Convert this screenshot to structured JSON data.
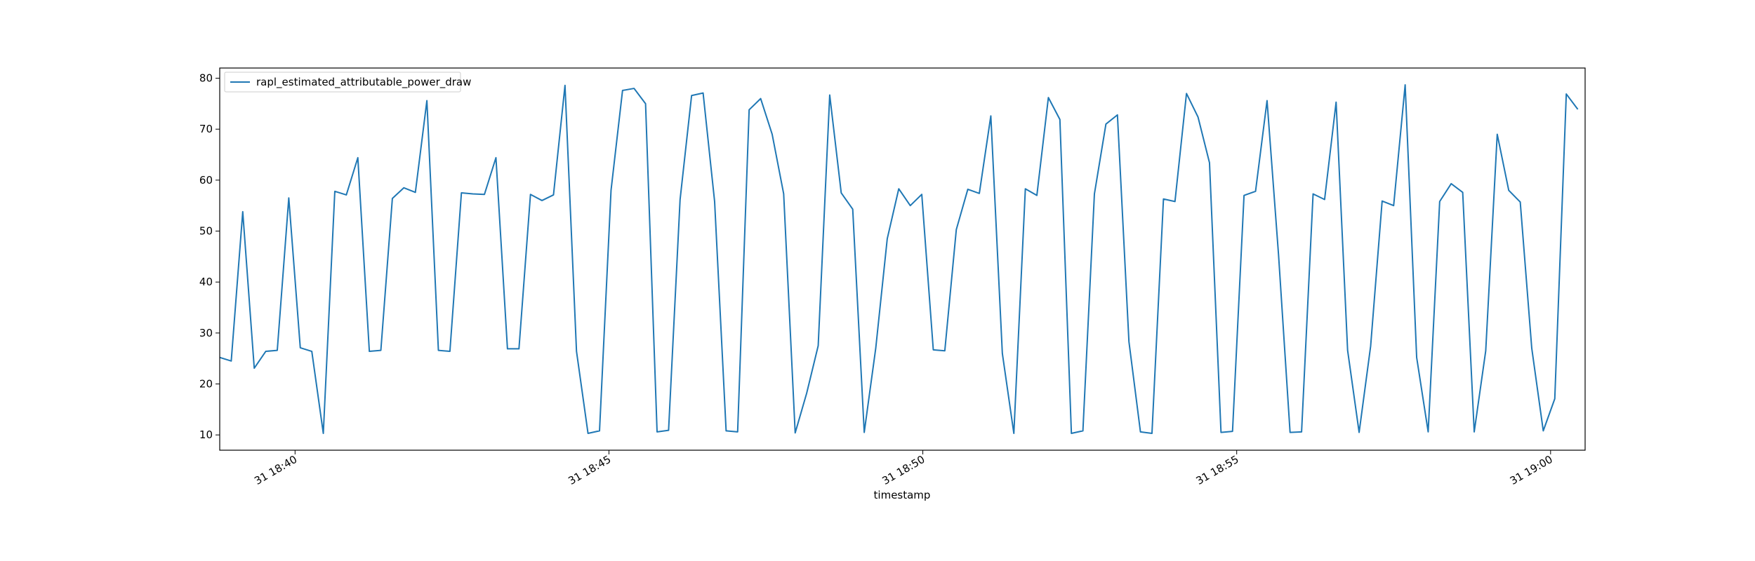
{
  "chart_data": {
    "type": "line",
    "xlabel": "timestamp",
    "ylabel": "",
    "ylim": [
      7,
      82
    ],
    "xlim_minutes": [
      38.8,
      60.55
    ],
    "x_start": "31 18:38:48",
    "x_step_seconds": 11,
    "x_ticks": [
      {
        "minute": 40,
        "label": "31 18:40"
      },
      {
        "minute": 45,
        "label": "31 18:45"
      },
      {
        "minute": 50,
        "label": "31 18:50"
      },
      {
        "minute": 55,
        "label": "31 18:55"
      },
      {
        "minute": 60,
        "label": "31 19:00"
      }
    ],
    "y_ticks": [
      10,
      20,
      30,
      40,
      50,
      60,
      70,
      80
    ],
    "legend_position": "upper-left",
    "grid": false,
    "series": [
      {
        "name": "rapl_estimated_attributable_power_draw",
        "color": "#1f77b4",
        "values": [
          25.2,
          24.5,
          53.8,
          23.1,
          26.4,
          26.6,
          56.5,
          27.1,
          26.4,
          10.3,
          57.8,
          57.1,
          64.4,
          26.4,
          26.6,
          56.4,
          58.5,
          57.6,
          75.6,
          26.6,
          26.4,
          57.5,
          57.3,
          57.2,
          64.4,
          26.9,
          26.9,
          57.2,
          56.0,
          57.1,
          78.6,
          26.4,
          10.3,
          10.8,
          58.0,
          77.6,
          78.0,
          75.0,
          10.6,
          10.9,
          56.2,
          76.6,
          77.1,
          55.8,
          10.8,
          10.6,
          73.8,
          76.0,
          69.0,
          57.3,
          10.4,
          18.2,
          27.5,
          76.7,
          57.5,
          54.3,
          10.5,
          27.0,
          48.5,
          58.3,
          55.0,
          57.2,
          26.7,
          26.5,
          50.3,
          58.2,
          57.4,
          72.6,
          26.0,
          10.3,
          58.3,
          57.0,
          76.2,
          71.9,
          10.3,
          10.8,
          57.3,
          71.0,
          72.8,
          28.3,
          10.6,
          10.3,
          56.3,
          55.8,
          77.0,
          72.4,
          63.4,
          10.5,
          10.7,
          57.0,
          57.8,
          75.6,
          45.3,
          10.5,
          10.6,
          57.3,
          56.2,
          75.3,
          26.6,
          10.5,
          27.4,
          55.9,
          55.0,
          78.7,
          25.2,
          10.6,
          55.8,
          59.3,
          57.6,
          10.6,
          26.5,
          69.0,
          58.0,
          55.7,
          27.0,
          10.8,
          17.1,
          76.9,
          73.9
        ]
      }
    ]
  }
}
